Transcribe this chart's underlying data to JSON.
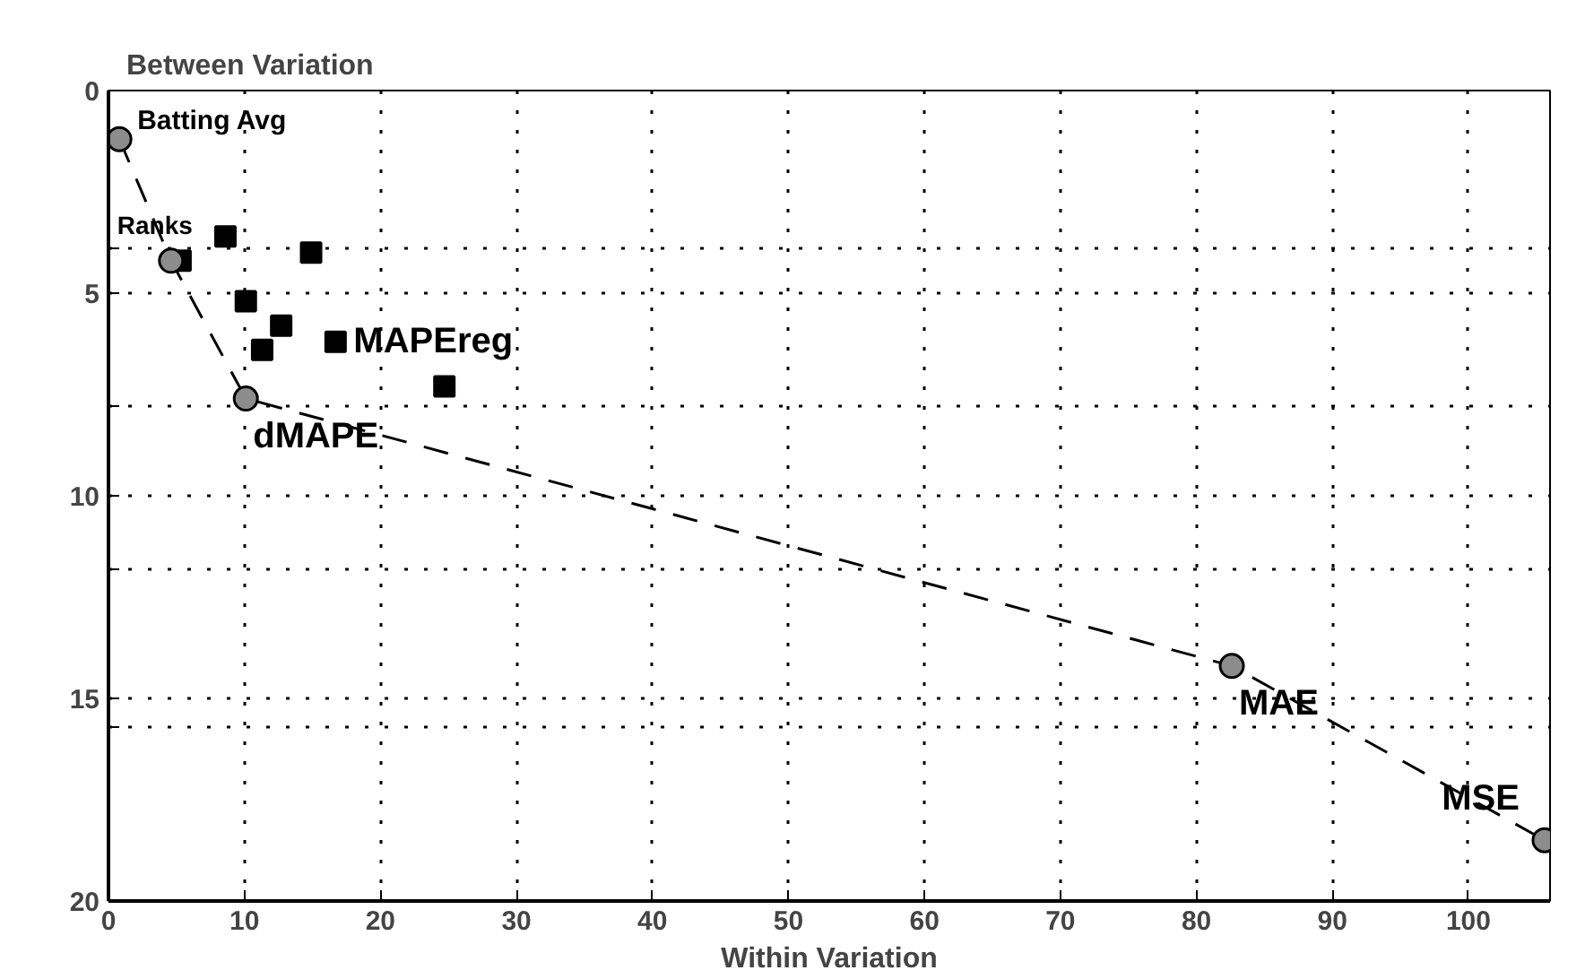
{
  "chart_data": {
    "type": "scatter",
    "ylabel": "Between Variation",
    "xlabel": "Within Variation",
    "xlim": [
      0,
      106
    ],
    "ylim": [
      20,
      0
    ],
    "xticks": [
      0,
      10,
      20,
      30,
      40,
      50,
      60,
      70,
      80,
      90,
      100
    ],
    "yticks": [
      0,
      {
        "value": 3.9,
        "label": null
      },
      5,
      {
        "value": 7.8,
        "label": null
      },
      10,
      {
        "value": 11.8,
        "label": null
      },
      15,
      {
        "value": 15.7,
        "label": null
      },
      20
    ],
    "grid": true,
    "series": [
      {
        "type": "line",
        "marker": "circle",
        "line_style": "dashed",
        "color": "#8c8c8c",
        "x": [
          0.8,
          4.6,
          10.1,
          82.6,
          105.6
        ],
        "values": [
          1.2,
          4.2,
          7.6,
          14.2,
          18.5
        ]
      },
      {
        "type": "scatter",
        "marker": "square",
        "color": "#000000",
        "x": [
          5.3,
          8.6,
          10.1,
          12.7,
          11.3,
          14.9,
          16.7,
          24.7
        ],
        "values": [
          4.2,
          3.6,
          5.2,
          5.8,
          6.4,
          4.0,
          6.2,
          7.3
        ]
      }
    ],
    "annotations": [
      {
        "text": "Batting Avg",
        "x": 0.8,
        "y": 1.2
      },
      {
        "text": "Ranks",
        "x": 4.6,
        "y": 4.2
      },
      {
        "text": "dMAPE",
        "x": 10.1,
        "y": 7.6
      },
      {
        "text": "MAPEreg",
        "x": 16.7,
        "y": 6.2
      },
      {
        "text": "MAE",
        "x": 82.6,
        "y": 14.2
      },
      {
        "text": "MSE",
        "x": 105.6,
        "y": 18.5
      }
    ]
  }
}
